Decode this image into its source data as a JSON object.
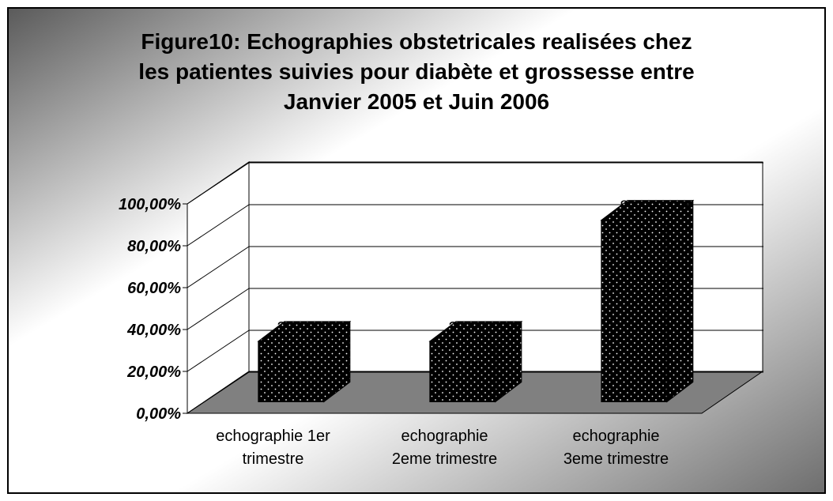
{
  "chart_data": {
    "type": "bar3d",
    "title": "Figure10: Echographies obstetricales realisées chez\nles patientes suivies pour diabète et grossesse entre\nJanvier 2005 et Juin 2006",
    "categories": [
      "echographie 1er\ntrimestre",
      "echographie\n2eme trimestre",
      "echographie\n3eme trimestre"
    ],
    "values": [
      28.9,
      28.9,
      86.7
    ],
    "value_labels": [
      "28,90%",
      "28,90%",
      "86,70%"
    ],
    "color": "#000000",
    "ylim": [
      0,
      100
    ],
    "yticks": [
      {
        "value": 0,
        "label": "0,00%"
      },
      {
        "value": 20,
        "label": "20,00%"
      },
      {
        "value": 40,
        "label": "40,00%"
      },
      {
        "value": 60,
        "label": "60,00%"
      },
      {
        "value": 80,
        "label": "80,00%"
      },
      {
        "value": 100,
        "label": "100,00%"
      }
    ],
    "grid": true
  }
}
